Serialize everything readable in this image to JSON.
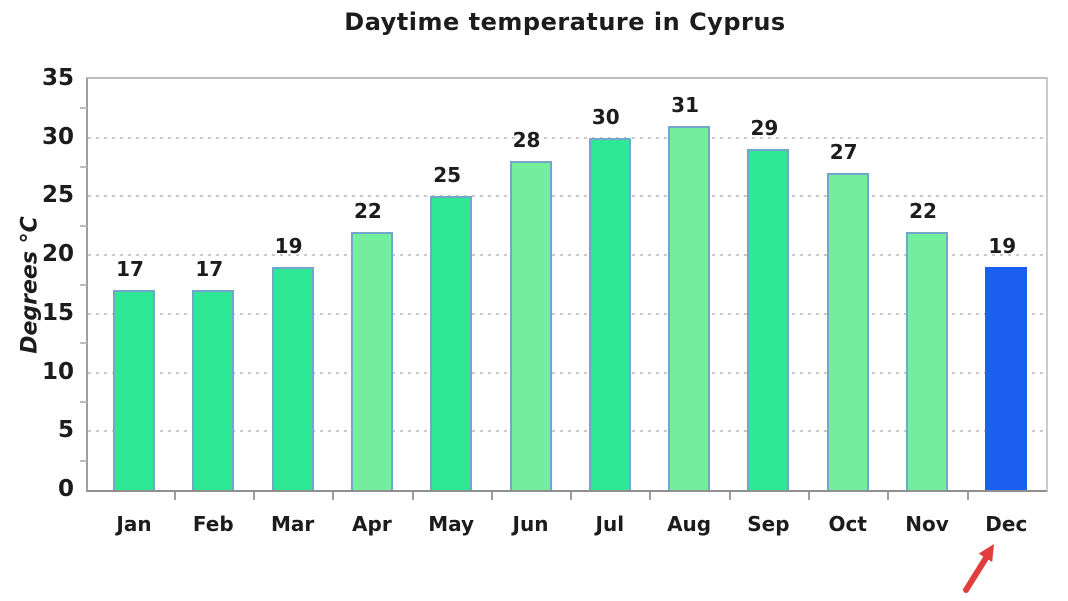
{
  "chart_data": {
    "type": "bar",
    "title": "Daytime temperature in Cyprus",
    "ylabel": "Degrees °C",
    "xlabel": "",
    "categories": [
      "Jan",
      "Feb",
      "Mar",
      "Apr",
      "May",
      "Jun",
      "Jul",
      "Aug",
      "Sep",
      "Oct",
      "Nov",
      "Dec"
    ],
    "values": [
      17,
      17,
      19,
      22,
      25,
      28,
      30,
      31,
      29,
      27,
      22,
      19
    ],
    "bar_colors": [
      "#2ee896",
      "#2ee896",
      "#2ee896",
      "#73ee9c",
      "#2ee896",
      "#73ee9c",
      "#2ee896",
      "#73ee9c",
      "#2ee896",
      "#73ee9c",
      "#73ee9c",
      "#1a5ff0"
    ],
    "bar_border_colors": [
      "#74a6cb",
      "#74a6cb",
      "#74a6cb",
      "#74a6cb",
      "#74a6cb",
      "#74a6cb",
      "#74a6cb",
      "#74a6cb",
      "#74a6cb",
      "#74a6cb",
      "#74a6cb",
      "#1a5ff0"
    ],
    "ylim": [
      0,
      35
    ],
    "yticks": [
      0,
      5,
      10,
      15,
      20,
      25,
      30,
      35
    ],
    "grid": "horizontal-dotted",
    "legend": "none",
    "highlight": {
      "category": "Dec",
      "value": 19,
      "color": "#1a5ff0"
    },
    "annotation": {
      "type": "red-arrow",
      "target": "Dec",
      "color": "#e23d3d"
    }
  },
  "colors": {
    "background": "#ffffff",
    "text": "#1c1c1c",
    "axis": "#9e9e9e",
    "gridline": "#c9c9c9",
    "green_dark": "#2ee896",
    "green_light": "#73ee9c",
    "blue_highlight": "#1a5ff0",
    "bar_border": "#74a6cb",
    "arrow_red": "#e23d3d"
  }
}
